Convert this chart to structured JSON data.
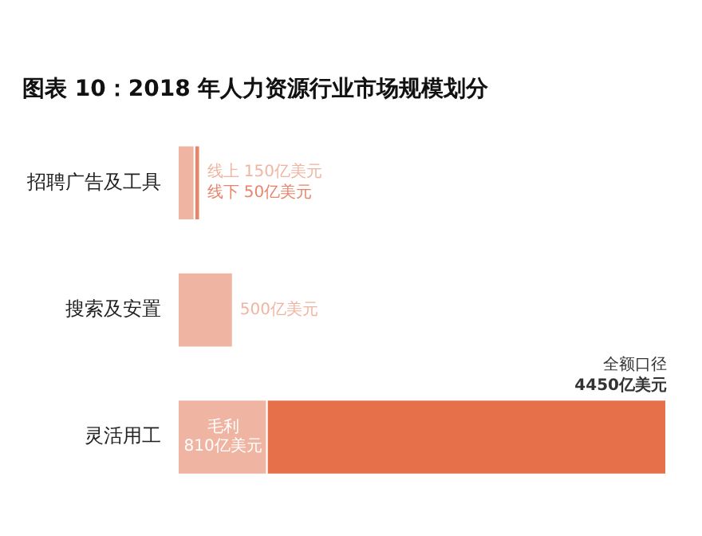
{
  "chart_data": {
    "type": "bar",
    "title": "图表 10：2018 年人力资源行业市场规模划分",
    "orientation": "horizontal",
    "stacked": true,
    "legend": false,
    "grid": false,
    "categories": [
      "招聘广告及工具",
      "搜索及安置",
      "灵活用工"
    ],
    "series": [
      {
        "name": "线上",
        "color": "#f0b5a2",
        "values": [
          150,
          null,
          null
        ],
        "value_labels": [
          "150亿美元",
          null,
          null
        ]
      },
      {
        "name": "线下",
        "color": "#e8846a",
        "values": [
          50,
          null,
          null
        ],
        "value_labels": [
          "50亿美元",
          null,
          null
        ]
      },
      {
        "color": "#f0b5a2",
        "values": [
          null,
          500,
          null
        ],
        "value_labels": [
          null,
          "500亿美元",
          null
        ]
      },
      {
        "name": "毛利",
        "color": "#f0b5a2",
        "values": [
          null,
          null,
          810
        ],
        "value_labels": [
          null,
          null,
          "810亿美元"
        ]
      },
      {
        "color": "#e5704a",
        "values": [
          null,
          null,
          3640
        ],
        "value_labels": [
          null,
          null,
          null
        ]
      }
    ],
    "totals": [
      null,
      null,
      "4450亿美元"
    ],
    "annotations": [
      "全额口径"
    ]
  }
}
